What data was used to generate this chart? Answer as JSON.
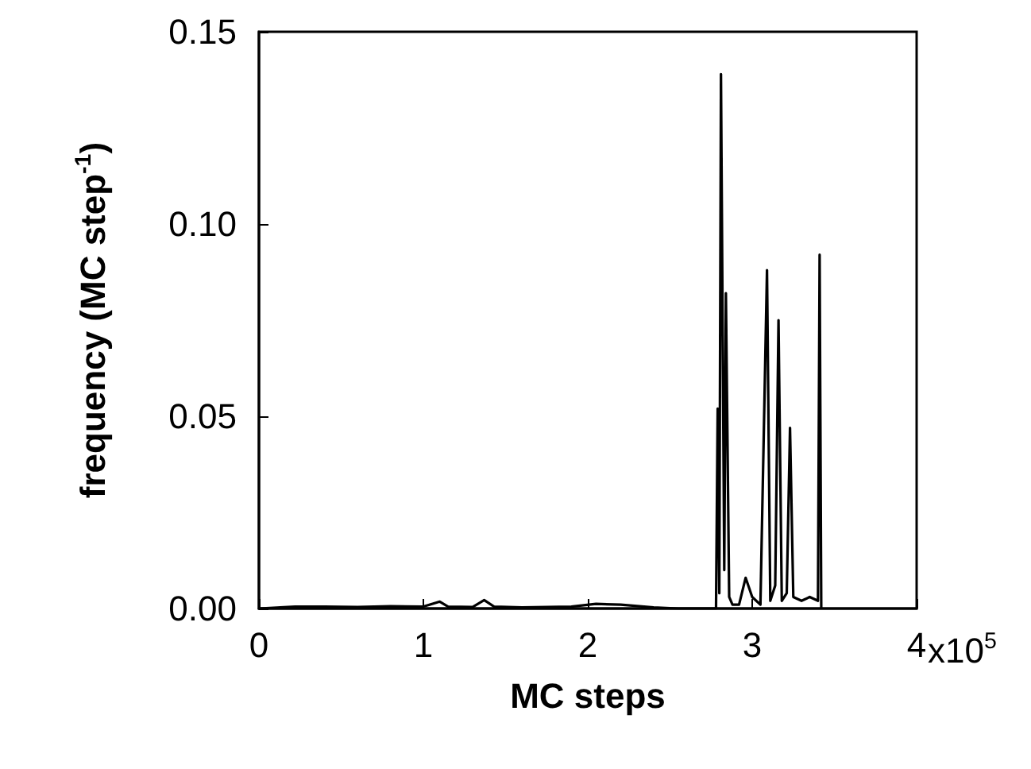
{
  "chart_data": {
    "type": "line",
    "xlabel": "MC steps",
    "ylabel": "frequency (MC step$^{-1}$)",
    "xlim": [
      0,
      4
    ],
    "xticks": [
      0,
      1,
      2,
      3,
      4
    ],
    "annotations": [
      "x10$^{5}$"
    ],
    "ylim": [
      0,
      0.15
    ],
    "yticks": [
      {
        "value": 0,
        "label": "0.00"
      },
      {
        "value": 0.05,
        "label": "0.05"
      },
      {
        "value": 0.1,
        "label": "0.10"
      },
      {
        "value": 0.15,
        "label": "0.15"
      }
    ],
    "grid": false,
    "marker": "none",
    "line_style": "solid",
    "series": [
      {
        "color": "#000000",
        "x": [
          0,
          0.22,
          0.4,
          0.6,
          0.8,
          1.0,
          1.1,
          1.15,
          1.3,
          1.37,
          1.43,
          1.6,
          1.9,
          2.05,
          2.2,
          2.4,
          2.55,
          2.78,
          2.79,
          2.8,
          2.81,
          2.83,
          2.84,
          2.86,
          2.88,
          2.92,
          2.96,
          3.0,
          3.05,
          3.09,
          3.11,
          3.14,
          3.16,
          3.18,
          3.21,
          3.23,
          3.25,
          3.3,
          3.35,
          3.4,
          3.41,
          3.42
        ],
        "values": [
          0,
          0.0005,
          0.0005,
          0.0004,
          0.0006,
          0.0005,
          0.0018,
          0.0005,
          0.0004,
          0.0022,
          0.0005,
          0.0003,
          0.0005,
          0.0012,
          0.001,
          0.0003,
          0,
          0,
          0.052,
          0.004,
          0.139,
          0.01,
          0.082,
          0.003,
          0.001,
          0.001,
          0.008,
          0.003,
          0.001,
          0.088,
          0.002,
          0.006,
          0.075,
          0.002,
          0.004,
          0.047,
          0.003,
          0.002,
          0.003,
          0.002,
          0.092,
          0
        ]
      }
    ]
  }
}
